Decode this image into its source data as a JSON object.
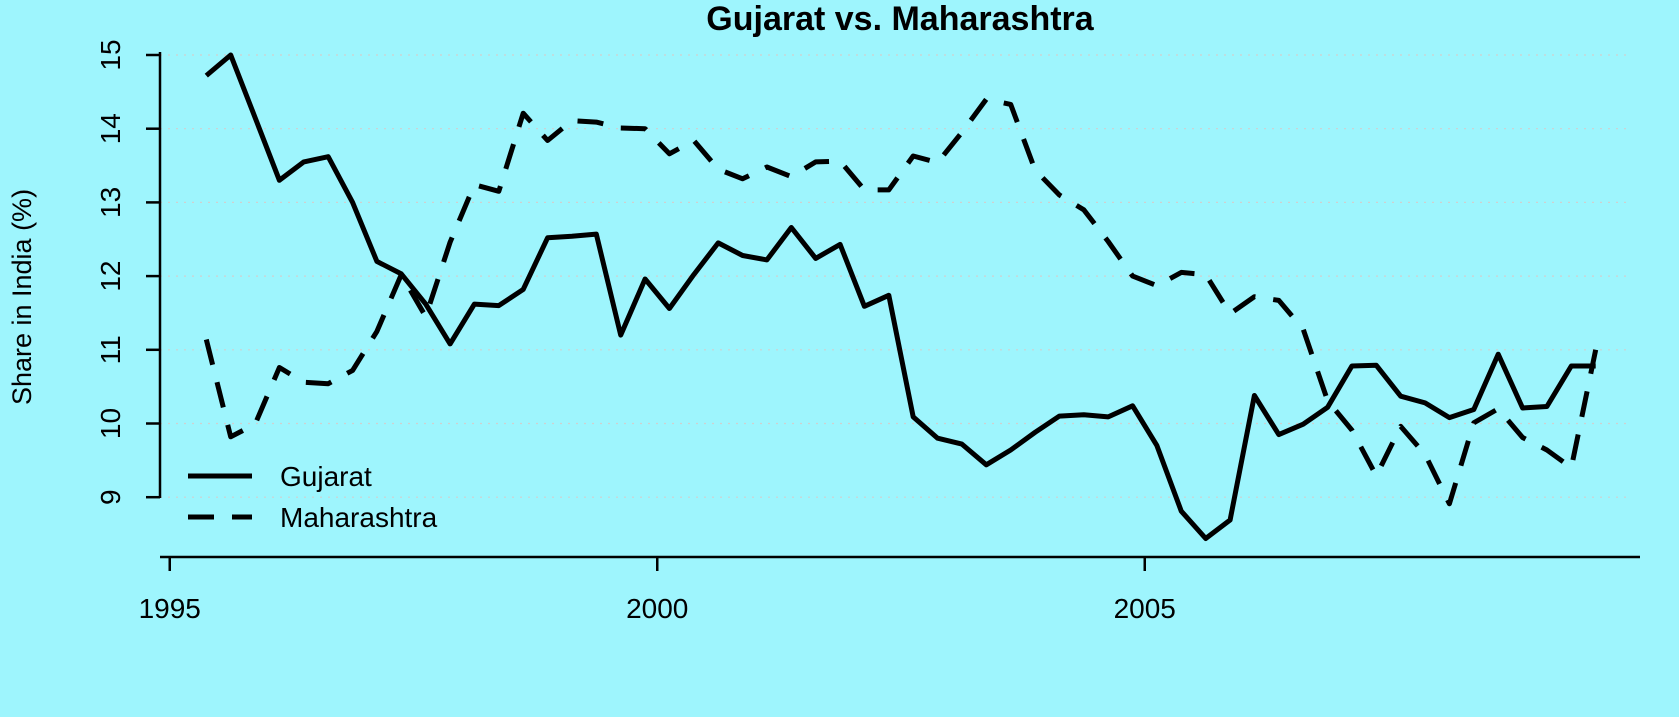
{
  "chart_data": {
    "type": "line",
    "title": "Gujarat vs. Maharashtra",
    "xlabel": "",
    "ylabel": "Share in India (%)",
    "xlim": [
      1994.9,
      2010.0
    ],
    "ylim": [
      8.3,
      15.2
    ],
    "xticks": [
      1995,
      2000,
      2005
    ],
    "xtick_labels": [
      "1995",
      "2000",
      "2005"
    ],
    "yticks": [
      9,
      10,
      11,
      12,
      13,
      14,
      15
    ],
    "ytick_labels": [
      "9",
      "10",
      "11",
      "12",
      "13",
      "14",
      "15"
    ],
    "grid": true,
    "legend_position": "bottom-left",
    "x": [
      1995.375,
      1995.625,
      1995.875,
      1996.125,
      1996.375,
      1996.625,
      1996.875,
      1997.125,
      1997.375,
      1997.625,
      1997.875,
      1998.125,
      1998.375,
      1998.625,
      1998.875,
      1999.125,
      1999.375,
      1999.625,
      1999.875,
      2000.125,
      2000.375,
      2000.625,
      2000.875,
      2001.125,
      2001.375,
      2001.625,
      2001.875,
      2002.125,
      2002.375,
      2002.625,
      2002.875,
      2003.125,
      2003.375,
      2003.625,
      2003.875,
      2004.125,
      2004.375,
      2004.625,
      2004.875,
      2005.125,
      2005.375,
      2005.625,
      2005.875,
      2006.125,
      2006.375,
      2006.625,
      2006.875,
      2007.125,
      2007.375,
      2007.625,
      2007.875,
      2008.125,
      2008.375,
      2008.625,
      2008.875,
      2009.125,
      2009.375,
      2009.625
    ],
    "series": [
      {
        "name": "Gujarat",
        "style": "solid",
        "values": [
          14.72,
          15.0,
          14.15,
          13.3,
          13.55,
          13.62,
          13.0,
          12.2,
          12.03,
          11.62,
          11.08,
          11.62,
          11.6,
          11.82,
          12.52,
          12.54,
          12.57,
          11.2,
          11.96,
          11.56,
          12.02,
          12.45,
          12.28,
          12.22,
          12.66,
          12.24,
          12.43,
          11.59,
          11.74,
          10.09,
          9.8,
          9.72,
          9.44,
          9.64,
          9.88,
          10.1,
          10.12,
          10.09,
          10.24,
          9.7,
          8.81,
          8.44,
          8.69,
          10.38,
          9.85,
          9.99,
          10.22,
          10.78,
          10.79,
          10.37,
          10.28,
          10.08,
          10.19,
          10.94,
          10.21,
          10.23,
          10.78,
          10.78
        ]
      },
      {
        "name": "Maharashtra",
        "style": "dashed",
        "values": [
          11.14,
          9.82,
          9.99,
          10.76,
          10.56,
          10.54,
          10.72,
          11.25,
          12.02,
          11.45,
          12.46,
          13.24,
          13.15,
          14.21,
          13.84,
          14.11,
          14.09,
          14.01,
          14.0,
          13.66,
          13.84,
          13.45,
          13.32,
          13.48,
          13.35,
          13.55,
          13.56,
          13.17,
          13.17,
          13.63,
          13.54,
          13.95,
          14.4,
          14.33,
          13.44,
          13.1,
          12.9,
          12.47,
          12.0,
          11.87,
          12.05,
          12.02,
          11.49,
          11.72,
          11.67,
          11.28,
          10.31,
          9.91,
          9.29,
          9.96,
          9.58,
          8.91,
          10.01,
          10.2,
          9.81,
          9.64,
          9.4,
          11.0
        ]
      }
    ]
  }
}
